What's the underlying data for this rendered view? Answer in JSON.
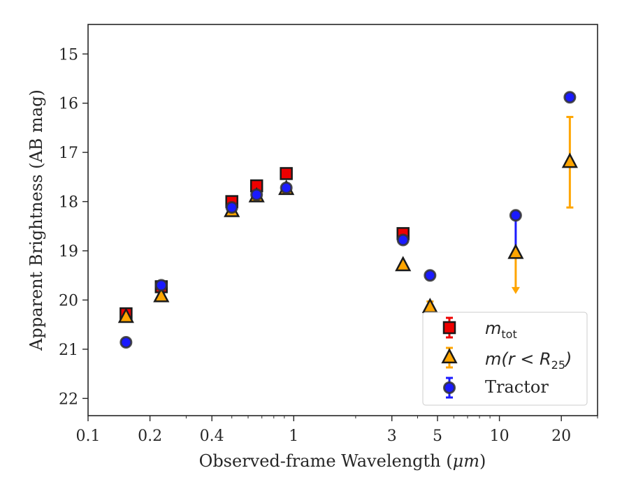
{
  "chart_data": {
    "type": "scatter",
    "title": "",
    "xlabel": "Observed-frame Wavelength (",
    "xlabel_unit": "μm",
    "xlabel_close": ")",
    "ylabel": "Apparent Brightness (AB mag)",
    "xscale": "log",
    "xlim": [
      0.1,
      30
    ],
    "ylim": [
      22.35,
      14.4
    ],
    "y_inverted": true,
    "xticks": [
      {
        "value": 0.1,
        "label": "0.1"
      },
      {
        "value": 0.2,
        "label": "0.2"
      },
      {
        "value": 0.4,
        "label": "0.4"
      },
      {
        "value": 1,
        "label": "1"
      },
      {
        "value": 3,
        "label": "3"
      },
      {
        "value": 5,
        "label": "5"
      },
      {
        "value": 10,
        "label": "10"
      },
      {
        "value": 20,
        "label": "20"
      }
    ],
    "yticks": [
      {
        "value": 15,
        "label": "15"
      },
      {
        "value": 16,
        "label": "16"
      },
      {
        "value": 17,
        "label": "17"
      },
      {
        "value": 18,
        "label": "18"
      },
      {
        "value": 19,
        "label": "19"
      },
      {
        "value": 20,
        "label": "20"
      },
      {
        "value": 21,
        "label": "21"
      },
      {
        "value": 22,
        "label": "22"
      }
    ],
    "legend_position": "lower-right",
    "series": [
      {
        "name": "m_tot",
        "legend_main": "m",
        "legend_sub": "tot",
        "marker": "square",
        "color": "#ee0000",
        "points": [
          {
            "x": 0.153,
            "y": 20.28
          },
          {
            "x": 0.227,
            "y": 19.73
          },
          {
            "x": 0.5,
            "y": 18.0
          },
          {
            "x": 0.66,
            "y": 17.68
          },
          {
            "x": 0.92,
            "y": 17.43
          },
          {
            "x": 3.4,
            "y": 18.65
          }
        ]
      },
      {
        "name": "m(r < R25)",
        "legend_main": "m(r < R",
        "legend_sub": "25",
        "legend_close": ")",
        "marker": "triangle",
        "color": "#ffa500",
        "points": [
          {
            "x": 0.153,
            "y": 20.35
          },
          {
            "x": 0.227,
            "y": 19.93
          },
          {
            "x": 0.5,
            "y": 18.2
          },
          {
            "x": 0.66,
            "y": 17.9
          },
          {
            "x": 0.92,
            "y": 17.75
          },
          {
            "x": 3.4,
            "y": 19.3
          },
          {
            "x": 4.6,
            "y": 20.15,
            "err_up": 0.12
          },
          {
            "x": 12,
            "y": 19.05,
            "upper_limit": 19.85
          },
          {
            "x": 22,
            "y": 17.2,
            "err_low": 0.92,
            "err_high": 0.92
          }
        ]
      },
      {
        "name": "Tractor",
        "marker": "circle",
        "color": "#1a1aff",
        "points": [
          {
            "x": 0.153,
            "y": 20.86
          },
          {
            "x": 0.227,
            "y": 19.7
          },
          {
            "x": 0.5,
            "y": 18.12
          },
          {
            "x": 0.66,
            "y": 17.86
          },
          {
            "x": 0.92,
            "y": 17.72
          },
          {
            "x": 3.4,
            "y": 18.78
          },
          {
            "x": 4.6,
            "y": 19.5
          },
          {
            "x": 12,
            "y": 18.28,
            "err_high": 0.77
          },
          {
            "x": 22,
            "y": 15.88
          }
        ]
      }
    ]
  }
}
